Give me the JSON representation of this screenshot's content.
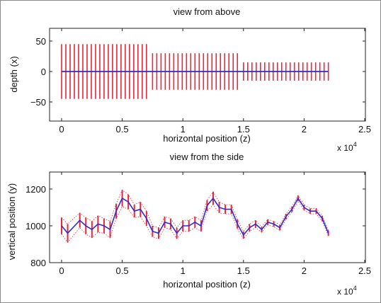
{
  "chart_data": [
    {
      "type": "line",
      "title": "view from above",
      "xlabel": "horizontal position (z)",
      "ylabel": "depth (x)",
      "x_exponent_label": "x 10",
      "x_exponent_power": "4",
      "xlim": [
        0,
        2.5
      ],
      "ylim": [
        -60,
        60
      ],
      "xticks": [
        "0",
        "0.5",
        "1",
        "1.5",
        "2",
        "2.5"
      ],
      "yticks": [
        "50",
        "0",
        "−50"
      ],
      "grid": false,
      "colors": {
        "line": "#2b2bd6",
        "errorbar": "#e8263b"
      },
      "series": [
        {
          "x_start": 0,
          "x_end": 2.2,
          "y": 0
        }
      ],
      "errorbars": [
        {
          "x_start": 0.0,
          "x_end": 0.7,
          "step": 0.035,
          "y_low": -45,
          "y_high": 45
        },
        {
          "x_start": 0.75,
          "x_end": 1.475,
          "step": 0.035,
          "y_low": -30,
          "y_high": 30
        },
        {
          "x_start": 1.5,
          "x_end": 2.2,
          "step": 0.035,
          "y_low": -15,
          "y_high": 15
        }
      ]
    },
    {
      "type": "line",
      "title": "view from the side",
      "xlabel": "horizontal position (z)",
      "ylabel": "vertical position (y)",
      "x_exponent_label": "x 10",
      "x_exponent_power": "4",
      "xlim": [
        0,
        2.5
      ],
      "ylim": [
        800,
        1280
      ],
      "xticks": [
        "0",
        "0.5",
        "1",
        "1.5",
        "2",
        "2.5"
      ],
      "yticks": [
        "1200",
        "1000",
        "800"
      ],
      "grid": false,
      "colors": {
        "line": "#2b2bd6",
        "errorbar": "#e8263b"
      },
      "series": [
        {
          "x": [
            0,
            0.05,
            0.15,
            0.2,
            0.25,
            0.3,
            0.35,
            0.4,
            0.45,
            0.5,
            0.55,
            0.6,
            0.65,
            0.7,
            0.75,
            0.8,
            0.85,
            0.9,
            0.95,
            1.0,
            1.05,
            1.1,
            1.15,
            1.2,
            1.25,
            1.3,
            1.35,
            1.4,
            1.45,
            1.5,
            1.55,
            1.6,
            1.65,
            1.7,
            1.75,
            1.8,
            1.85,
            1.9,
            1.95,
            2.0,
            2.05,
            2.1,
            2.15,
            2.2
          ],
          "y": [
            1000,
            960,
            1030,
            1000,
            980,
            1010,
            1000,
            980,
            1080,
            1150,
            1130,
            1080,
            1090,
            1040,
            970,
            960,
            1020,
            1010,
            960,
            1000,
            1000,
            1020,
            1000,
            1110,
            1150,
            1100,
            1090,
            1090,
            1010,
            950,
            990,
            1010,
            980,
            1020,
            1010,
            990,
            1050,
            1090,
            1150,
            1100,
            1080,
            1080,
            1040,
            960
          ],
          "err": [
            45,
            50,
            40,
            45,
            45,
            45,
            40,
            45,
            40,
            45,
            40,
            35,
            40,
            40,
            30,
            30,
            30,
            30,
            30,
            30,
            30,
            30,
            30,
            30,
            35,
            30,
            25,
            25,
            25,
            20,
            20,
            20,
            15,
            15,
            15,
            15,
            15,
            15,
            15,
            15,
            15,
            15,
            15,
            15
          ]
        }
      ]
    }
  ]
}
